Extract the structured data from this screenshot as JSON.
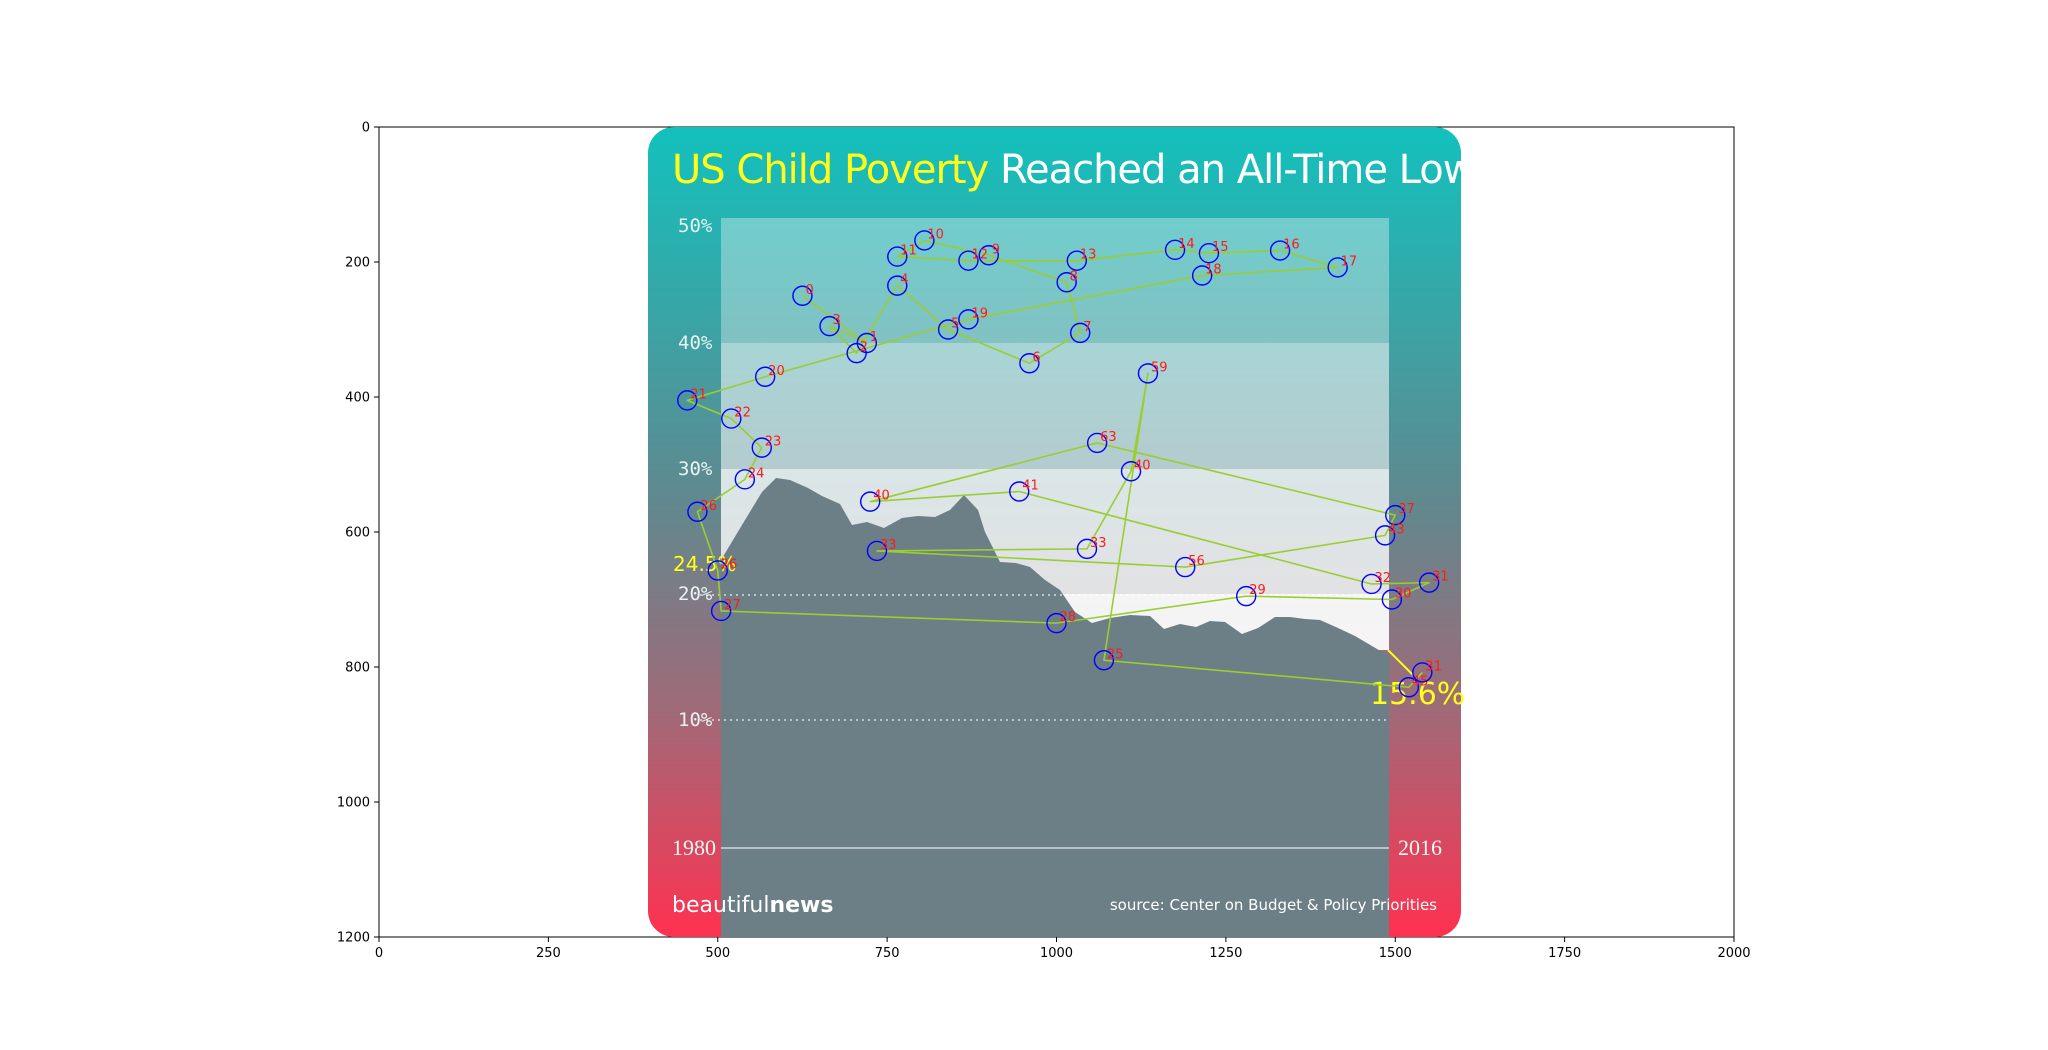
{
  "plot_axes": {
    "x_ticks": [
      0,
      250,
      500,
      750,
      1000,
      1250,
      1500,
      1750,
      2000
    ],
    "y_ticks": [
      0,
      200,
      400,
      600,
      800,
      1000,
      1200
    ],
    "xlim": [
      0,
      2000
    ],
    "ylim": [
      1200,
      0
    ]
  },
  "card": {
    "title_part1": "US Child Poverty",
    "title_part2": " Reached an All-Time Low",
    "pct_labels": [
      "50%",
      "40%",
      "30%",
      "20%",
      "10%"
    ],
    "start_year": "1980",
    "end_year": "2016",
    "callout_end": "15.6%",
    "callout_start": "24.5%",
    "brand_light": "beautiful",
    "brand_bold": "news",
    "source": "source: Center on Budget & Policy Priorities",
    "colors": {
      "top": "#14c0bd",
      "mid": "#8a7480",
      "bottom": "#ff3352",
      "highlight": "#ffff1a",
      "path": "#9acd32",
      "marker": "#0000ff",
      "marker_label": "#ff1a1a"
    }
  },
  "chart_data": {
    "type": "scatter",
    "connected": true,
    "x": [
      625,
      720,
      665,
      705,
      765,
      840,
      960,
      1035,
      1015,
      900,
      805,
      765,
      870,
      1030,
      1175,
      1225,
      1330,
      1415,
      1215,
      870,
      570,
      455,
      520,
      565,
      540,
      470,
      500,
      505,
      1000,
      1280,
      1495,
      1550,
      1465,
      945,
      725,
      1060,
      1500,
      1485,
      1190,
      735,
      1045,
      1110,
      1135,
      1070,
      1520,
      1540
    ],
    "y": [
      250,
      320,
      295,
      335,
      235,
      300,
      350,
      305,
      230,
      190,
      168,
      192,
      198,
      198,
      182,
      187,
      183,
      208,
      220,
      285,
      370,
      405,
      432,
      475,
      522,
      570,
      657,
      717,
      735,
      695,
      700,
      675,
      677,
      540,
      555,
      468,
      575,
      605,
      652,
      628,
      625,
      510,
      365,
      790,
      830,
      808
    ],
    "labels": [
      "0",
      "1",
      "3",
      "2",
      "4",
      "5",
      "6",
      "7",
      "8",
      "9",
      "10",
      "11",
      "12",
      "13",
      "14",
      "15",
      "16",
      "17",
      "18",
      "19",
      "20",
      "21",
      "22",
      "23",
      "24",
      "26",
      "26",
      "27",
      "28",
      "29",
      "30",
      "31",
      "32",
      "41",
      "40",
      "63",
      "37",
      "43",
      "56",
      "33",
      "33",
      "40",
      "59",
      "25",
      "45",
      "31"
    ]
  }
}
